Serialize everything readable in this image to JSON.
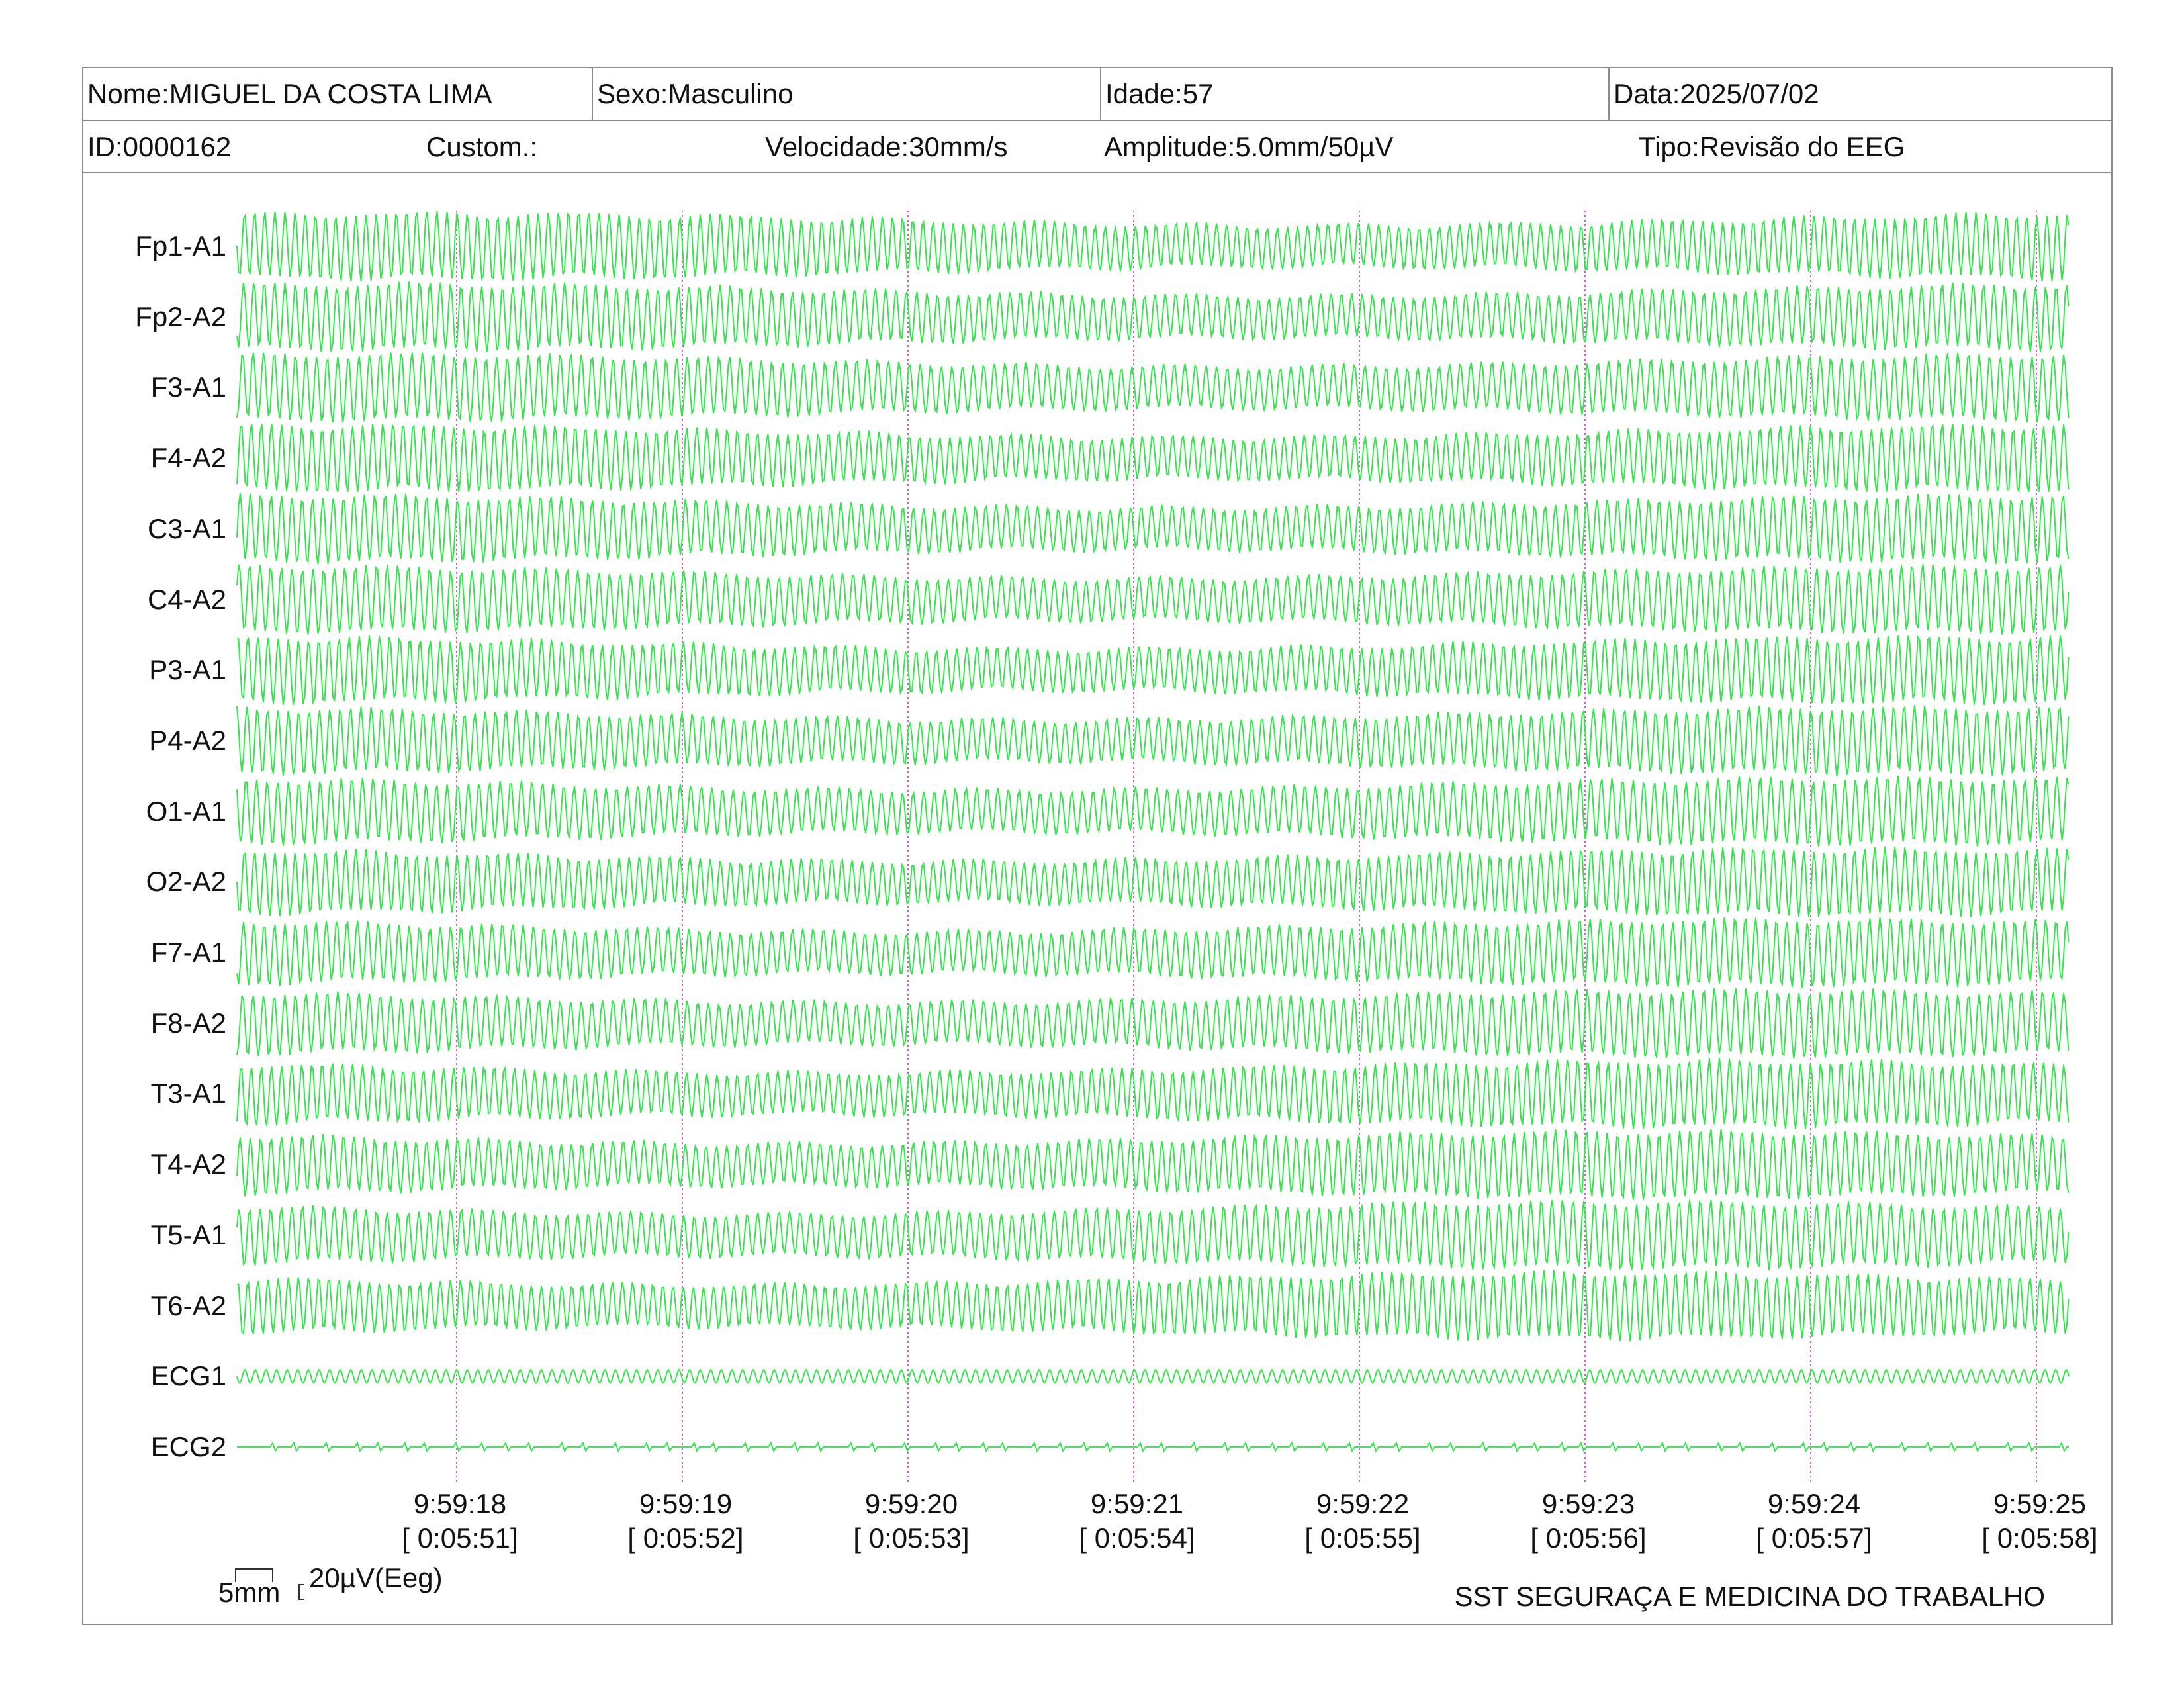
{
  "header": {
    "name": "Nome:MIGUEL DA COSTA LIMA",
    "sex": "Sexo:Masculino",
    "age": "Idade:57",
    "date": "Data:2025/07/02",
    "id": "ID:0000162",
    "custom": "Custom.:",
    "speed": "Velocidade:30mm/s",
    "amplitude": "Amplitude:5.0mm/50µV",
    "type": "Tipo:Revisão do EEG"
  },
  "channels": [
    {
      "label": "Fp1-A1",
      "kind": "eeg"
    },
    {
      "label": "Fp2-A2",
      "kind": "eeg"
    },
    {
      "label": "F3-A1",
      "kind": "eeg"
    },
    {
      "label": "F4-A2",
      "kind": "eeg"
    },
    {
      "label": "C3-A1",
      "kind": "eeg"
    },
    {
      "label": "C4-A2",
      "kind": "eeg"
    },
    {
      "label": "P3-A1",
      "kind": "eeg"
    },
    {
      "label": "P4-A2",
      "kind": "eeg"
    },
    {
      "label": "O1-A1",
      "kind": "eeg"
    },
    {
      "label": "O2-A2",
      "kind": "eeg"
    },
    {
      "label": "F7-A1",
      "kind": "eeg"
    },
    {
      "label": "F8-A2",
      "kind": "eeg"
    },
    {
      "label": "T3-A1",
      "kind": "eeg"
    },
    {
      "label": "T4-A2",
      "kind": "eeg"
    },
    {
      "label": "T5-A1",
      "kind": "eeg"
    },
    {
      "label": "T6-A2",
      "kind": "eeg"
    },
    {
      "label": "ECG1",
      "kind": "ecg1"
    },
    {
      "label": "ECG2",
      "kind": "ecg2"
    }
  ],
  "time_marks": [
    {
      "clock": "9:59:18",
      "elapsed": "[ 0:05:51]"
    },
    {
      "clock": "9:59:19",
      "elapsed": "[ 0:05:52]"
    },
    {
      "clock": "9:59:20",
      "elapsed": "[ 0:05:53]"
    },
    {
      "clock": "9:59:21",
      "elapsed": "[ 0:05:54]"
    },
    {
      "clock": "9:59:22",
      "elapsed": "[ 0:05:55]"
    },
    {
      "clock": "9:59:23",
      "elapsed": "[ 0:05:56]"
    },
    {
      "clock": "9:59:24",
      "elapsed": "[ 0:05:57]"
    },
    {
      "clock": "9:59:25",
      "elapsed": "[ 0:05:58]"
    }
  ],
  "scale": {
    "time": "5mm",
    "amplitude": "20µV(Eeg)"
  },
  "footer": "SST SEGURAÇA E MEDICINA DO TRABALHO",
  "colors": {
    "trace": "#33e64c",
    "marker": "#d060d0",
    "border": "#8a8a8a"
  }
}
